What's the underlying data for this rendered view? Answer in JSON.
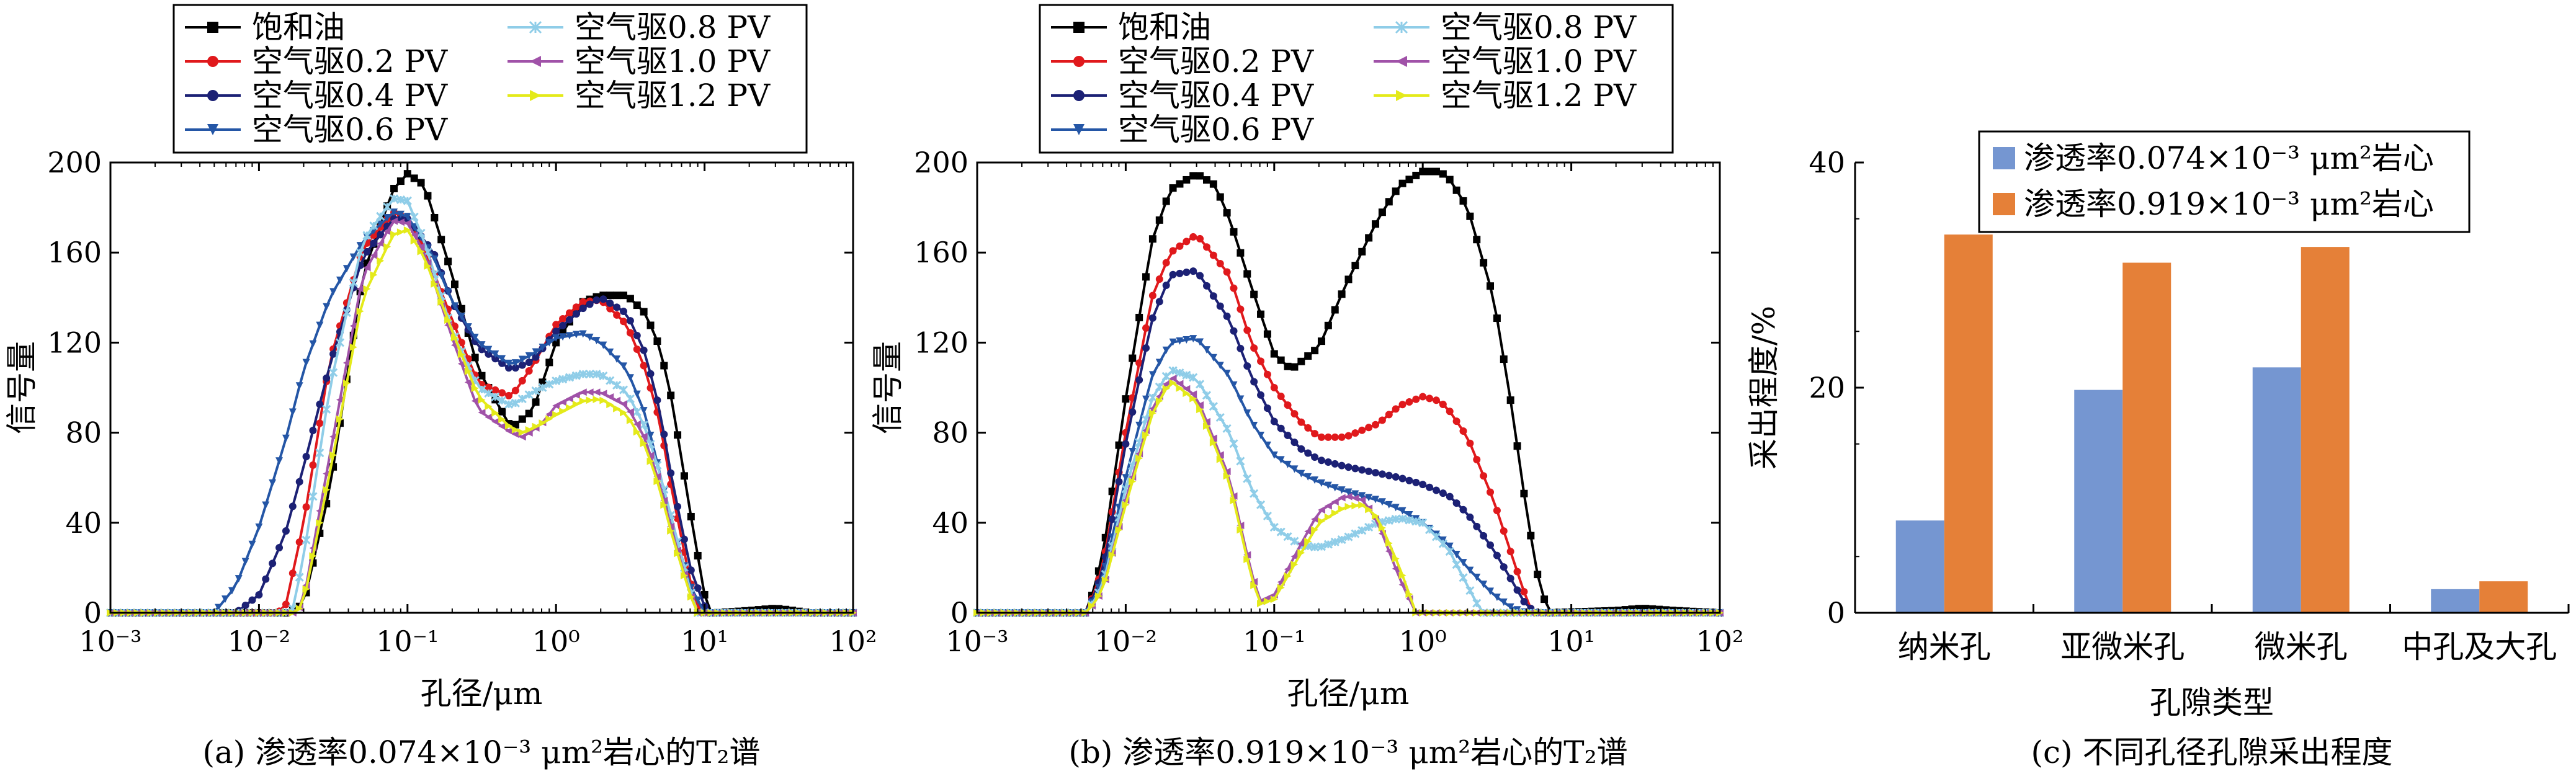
{
  "legend_labels": {
    "s0": "饱和油",
    "s1": "空气驱0.2 PV",
    "s2": "空气驱0.4 PV",
    "s3": "空气驱0.6 PV",
    "s4": "空气驱0.8 PV",
    "s5": "空气驱1.0 PV",
    "s6": "空气驱1.2 PV"
  },
  "colors": {
    "s0": "#000000",
    "s1": "#e0191c",
    "s2": "#1c2175",
    "s3": "#2456a6",
    "s4": "#8fcde8",
    "s5": "#a052a8",
    "s6": "#e4ea1a",
    "bar_blue": "#7596d1",
    "bar_orange": "#e58038"
  },
  "chart_data": [
    {
      "id": "a",
      "type": "line",
      "caption": "(a) 渗透率0.074×10⁻³ μm²岩心的T₂谱",
      "xlabel": "孔径/μm",
      "ylabel": "信号量",
      "xscale": "log",
      "xlim": [
        0.001,
        100
      ],
      "ylim": [
        0,
        200
      ],
      "xticks": [
        "10⁻³",
        "10⁻²",
        "10⁻¹",
        "10⁰",
        "10¹",
        "10²"
      ],
      "yticks": [
        "0",
        "40",
        "80",
        "120",
        "160",
        "200"
      ],
      "legend_position": "top",
      "series": [
        {
          "key": "s0",
          "x": [
            0.001,
            0.016,
            0.02,
            0.03,
            0.05,
            0.08,
            0.1,
            0.13,
            0.2,
            0.3,
            0.5,
            0.7,
            1,
            1.5,
            2,
            3,
            4,
            5,
            6,
            8,
            10,
            11,
            12,
            20,
            30,
            40,
            50,
            100
          ],
          "y": [
            0,
            0,
            4,
            55,
            150,
            188,
            195,
            190,
            150,
            108,
            82,
            90,
            120,
            138,
            141,
            141,
            133,
            118,
            95,
            45,
            8,
            0,
            0,
            1,
            2,
            1,
            0,
            0
          ]
        },
        {
          "key": "s1",
          "x": [
            0.001,
            0.013,
            0.015,
            0.02,
            0.03,
            0.05,
            0.08,
            0.1,
            0.13,
            0.2,
            0.3,
            0.5,
            0.7,
            1,
            1.5,
            2,
            3,
            4,
            5,
            6,
            8,
            9,
            10,
            100
          ],
          "y": [
            0,
            0,
            2,
            40,
            112,
            162,
            178,
            175,
            162,
            130,
            102,
            96,
            110,
            128,
            138,
            139,
            128,
            108,
            85,
            55,
            14,
            3,
            0,
            0
          ]
        },
        {
          "key": "s2",
          "x": [
            0.001,
            0.007,
            0.01,
            0.015,
            0.02,
            0.03,
            0.05,
            0.08,
            0.1,
            0.15,
            0.2,
            0.3,
            0.5,
            0.7,
            1,
            1.5,
            2,
            3,
            4,
            5,
            6,
            8,
            10,
            11,
            100
          ],
          "y": [
            0,
            0,
            8,
            35,
            65,
            110,
            158,
            175,
            175,
            160,
            138,
            118,
            108,
            112,
            125,
            135,
            140,
            133,
            115,
            90,
            60,
            20,
            3,
            0,
            0
          ]
        },
        {
          "key": "s3",
          "x": [
            0.001,
            0.005,
            0.007,
            0.01,
            0.015,
            0.02,
            0.03,
            0.05,
            0.08,
            0.1,
            0.15,
            0.2,
            0.3,
            0.5,
            0.7,
            1,
            1.5,
            2,
            3,
            4,
            5,
            6,
            8,
            10,
            100
          ],
          "y": [
            0,
            0,
            12,
            38,
            76,
            108,
            140,
            165,
            178,
            176,
            158,
            138,
            120,
            110,
            115,
            122,
            124,
            120,
            108,
            88,
            62,
            40,
            12,
            0,
            0
          ]
        },
        {
          "key": "s4",
          "x": [
            0.001,
            0.015,
            0.017,
            0.02,
            0.03,
            0.05,
            0.08,
            0.1,
            0.13,
            0.2,
            0.3,
            0.5,
            0.7,
            1,
            1.5,
            2,
            3,
            4,
            5,
            6,
            8,
            9,
            100
          ],
          "y": [
            0,
            0,
            2,
            25,
            100,
            165,
            184,
            183,
            165,
            125,
            100,
            92,
            98,
            103,
            106,
            106,
            98,
            82,
            62,
            42,
            10,
            0,
            0
          ]
        },
        {
          "key": "s5",
          "x": [
            0.001,
            0.018,
            0.02,
            0.03,
            0.05,
            0.08,
            0.1,
            0.13,
            0.2,
            0.3,
            0.5,
            0.6,
            0.8,
            1,
            1.5,
            2,
            3,
            4,
            5,
            6,
            8,
            9,
            100
          ],
          "y": [
            0,
            0,
            6,
            70,
            150,
            174,
            173,
            160,
            122,
            90,
            80,
            78,
            84,
            92,
            98,
            98,
            92,
            77,
            57,
            37,
            8,
            0,
            0
          ]
        },
        {
          "key": "s6",
          "x": [
            0.001,
            0.018,
            0.02,
            0.03,
            0.05,
            0.08,
            0.1,
            0.13,
            0.2,
            0.3,
            0.5,
            0.6,
            0.8,
            1,
            1.5,
            2,
            3,
            4,
            5,
            6,
            8,
            9,
            100
          ],
          "y": [
            0,
            0,
            5,
            62,
            140,
            168,
            170,
            158,
            125,
            96,
            82,
            80,
            84,
            88,
            94,
            95,
            88,
            74,
            55,
            35,
            8,
            0,
            0
          ]
        }
      ]
    },
    {
      "id": "b",
      "type": "line",
      "caption": "(b) 渗透率0.919×10⁻³ μm²岩心的T₂谱",
      "xlabel": "孔径/μm",
      "ylabel": "信号量",
      "xscale": "log",
      "xlim": [
        0.001,
        100
      ],
      "ylim": [
        0,
        200
      ],
      "xticks": [
        "10⁻³",
        "10⁻²",
        "10⁻¹",
        "10⁰",
        "10¹",
        "10²"
      ],
      "yticks": [
        "0",
        "40",
        "80",
        "120",
        "160",
        "200"
      ],
      "legend_position": "top",
      "series": [
        {
          "key": "s0",
          "x": [
            0.001,
            0.0055,
            0.007,
            0.01,
            0.015,
            0.02,
            0.03,
            0.04,
            0.05,
            0.07,
            0.1,
            0.13,
            0.2,
            0.3,
            0.5,
            0.7,
            1,
            1.3,
            1.5,
            2,
            3,
            4,
            5,
            6,
            7,
            20,
            30,
            50,
            100
          ],
          "y": [
            0,
            0,
            25,
            95,
            165,
            188,
            195,
            190,
            175,
            145,
            115,
            108,
            118,
            145,
            175,
            190,
            196,
            196,
            193,
            180,
            140,
            90,
            45,
            15,
            0,
            1,
            2,
            1,
            0
          ]
        },
        {
          "key": "s1",
          "x": [
            0.001,
            0.0055,
            0.007,
            0.01,
            0.015,
            0.02,
            0.03,
            0.05,
            0.07,
            0.1,
            0.15,
            0.2,
            0.3,
            0.5,
            0.7,
            1,
            1.3,
            1.5,
            2,
            3,
            4,
            5,
            5.5,
            100
          ],
          "y": [
            0,
            0,
            20,
            80,
            140,
            160,
            168,
            150,
            120,
            100,
            85,
            78,
            78,
            84,
            92,
            96,
            94,
            90,
            78,
            50,
            25,
            6,
            0,
            0
          ]
        },
        {
          "key": "s2",
          "x": [
            0.001,
            0.0055,
            0.007,
            0.01,
            0.015,
            0.02,
            0.03,
            0.05,
            0.07,
            0.1,
            0.15,
            0.2,
            0.3,
            0.5,
            0.7,
            1,
            1.5,
            2,
            3,
            4,
            5,
            6,
            100
          ],
          "y": [
            0,
            0,
            18,
            75,
            130,
            150,
            152,
            130,
            105,
            85,
            73,
            68,
            65,
            62,
            60,
            57,
            52,
            44,
            28,
            14,
            3,
            0,
            0
          ]
        },
        {
          "key": "s3",
          "x": [
            0.001,
            0.0055,
            0.007,
            0.01,
            0.015,
            0.02,
            0.03,
            0.05,
            0.07,
            0.1,
            0.15,
            0.2,
            0.3,
            0.5,
            0.7,
            1,
            1.5,
            2,
            3,
            4,
            5,
            100
          ],
          "y": [
            0,
            0,
            15,
            60,
            105,
            120,
            122,
            105,
            85,
            70,
            62,
            58,
            54,
            50,
            46,
            40,
            30,
            20,
            8,
            2,
            0,
            0
          ]
        },
        {
          "key": "s4",
          "x": [
            0.001,
            0.0055,
            0.007,
            0.01,
            0.015,
            0.02,
            0.03,
            0.05,
            0.07,
            0.1,
            0.15,
            0.2,
            0.3,
            0.5,
            0.7,
            1,
            1.5,
            2,
            2.5,
            100
          ],
          "y": [
            0,
            0,
            12,
            55,
            95,
            108,
            104,
            80,
            55,
            38,
            30,
            29,
            33,
            40,
            42,
            40,
            28,
            12,
            0,
            0
          ]
        },
        {
          "key": "s5",
          "x": [
            0.001,
            0.0055,
            0.007,
            0.01,
            0.015,
            0.02,
            0.03,
            0.05,
            0.07,
            0.08,
            0.1,
            0.15,
            0.2,
            0.3,
            0.4,
            0.5,
            0.7,
            0.9,
            100
          ],
          "y": [
            0,
            0,
            10,
            50,
            90,
            105,
            96,
            60,
            18,
            5,
            8,
            30,
            45,
            52,
            50,
            40,
            15,
            0,
            0
          ]
        },
        {
          "key": "s6",
          "x": [
            0.001,
            0.0055,
            0.007,
            0.01,
            0.015,
            0.02,
            0.03,
            0.05,
            0.07,
            0.08,
            0.1,
            0.15,
            0.2,
            0.3,
            0.4,
            0.5,
            0.7,
            0.9,
            100
          ],
          "y": [
            0,
            0,
            10,
            48,
            88,
            103,
            94,
            58,
            16,
            4,
            6,
            26,
            40,
            47,
            48,
            42,
            20,
            0,
            0
          ]
        }
      ]
    },
    {
      "id": "c",
      "type": "bar",
      "caption": "(c) 不同孔径孔隙采出程度",
      "xlabel": "孔隙类型",
      "ylabel": "采出程度/%",
      "ylim": [
        0,
        40
      ],
      "yticks": [
        "0",
        "20",
        "40"
      ],
      "categories": [
        "纳米孔",
        "亚微米孔",
        "微米孔",
        "中孔及大孔"
      ],
      "legend_position": "top-center",
      "series": [
        {
          "name": "渗透率0.074×10⁻³ μm²岩心",
          "color_key": "bar_blue",
          "values": [
            8.2,
            19.8,
            21.8,
            2.1
          ]
        },
        {
          "name": "渗透率0.919×10⁻³ μm²岩心",
          "color_key": "bar_orange",
          "values": [
            33.6,
            31.1,
            32.5,
            2.8
          ]
        }
      ]
    }
  ]
}
